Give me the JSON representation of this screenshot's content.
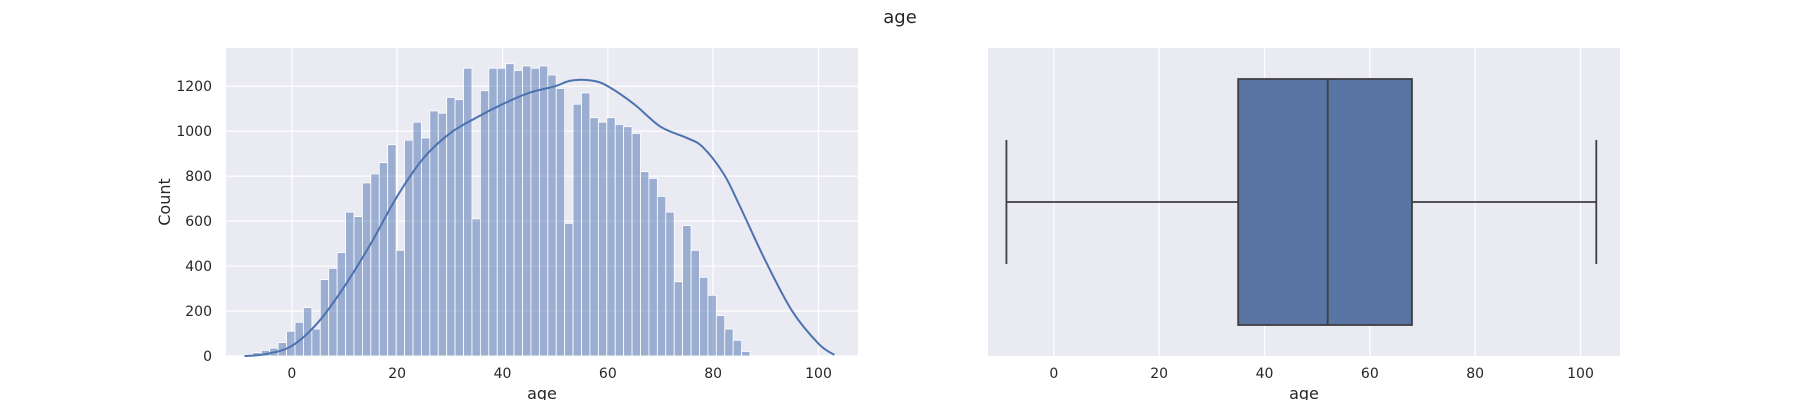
{
  "figure": {
    "suptitle": "age"
  },
  "colors": {
    "axes_bg": "#eaeaf2",
    "grid": "#ffffff",
    "hist_fill": "#4c72b0",
    "box_fill": "#5975a4",
    "line": "#4c72b0",
    "edge": "#3f3f3f"
  },
  "chart_data": [
    {
      "type": "bar",
      "subtype": "histogram-with-kde",
      "title": "",
      "xlabel": "age",
      "ylabel": "Count",
      "xlim": [
        -12.5,
        107.5
      ],
      "ylim": [
        0,
        1370
      ],
      "xticks": [
        0,
        20,
        40,
        60,
        80,
        100
      ],
      "yticks": [
        0,
        200,
        400,
        600,
        800,
        1000,
        1200
      ],
      "grid": true,
      "bin_start": -9,
      "bin_width": 1.6,
      "values": [
        5,
        15,
        25,
        35,
        60,
        110,
        150,
        215,
        120,
        340,
        390,
        460,
        640,
        620,
        770,
        810,
        860,
        940,
        470,
        960,
        1040,
        970,
        1090,
        1080,
        1150,
        1140,
        1280,
        610,
        1180,
        1280,
        1280,
        1300,
        1270,
        1290,
        1280,
        1290,
        1250,
        1190,
        590,
        1120,
        1170,
        1060,
        1040,
        1060,
        1030,
        1020,
        990,
        820,
        790,
        710,
        640,
        330,
        580,
        470,
        350,
        270,
        180,
        120,
        70,
        20
      ],
      "kde": {
        "x": [
          -9,
          -5,
          0,
          5,
          10,
          15,
          20,
          25,
          30,
          35,
          40,
          45,
          50,
          53,
          57,
          60,
          65,
          70,
          75,
          78,
          82,
          85,
          90,
          95,
          100,
          103
        ],
        "y": [
          0,
          8,
          45,
          150,
          310,
          500,
          710,
          880,
          990,
          1060,
          1120,
          1170,
          1200,
          1225,
          1225,
          1200,
          1120,
          1020,
          970,
          930,
          810,
          670,
          420,
          200,
          55,
          5
        ]
      }
    },
    {
      "type": "box",
      "title": "",
      "xlabel": "age",
      "ylabel": "",
      "xlim": [
        -12.5,
        107.5
      ],
      "xticks": [
        0,
        20,
        40,
        60,
        80,
        100
      ],
      "grid": true,
      "whisker_low": -9,
      "q1": 35,
      "median": 52,
      "q3": 68,
      "whisker_high": 103
    }
  ]
}
